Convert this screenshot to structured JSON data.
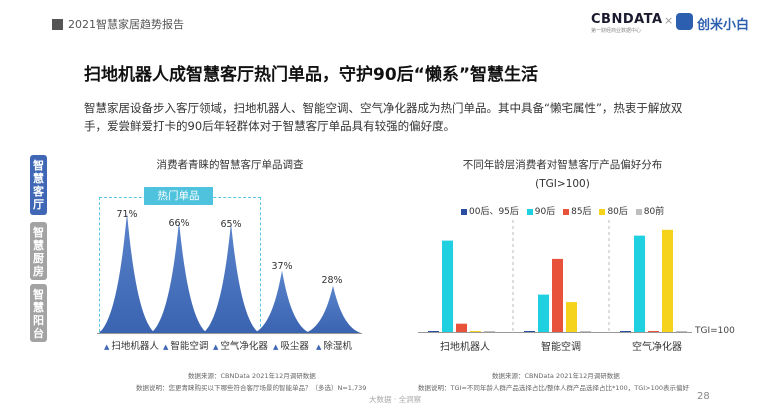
{
  "header": {
    "report_title": "2021智慧家居趋势报告",
    "brand": "CBNDATA",
    "brand_sub": "第一财经商业数据中心",
    "times": "×",
    "partner": "创米小白"
  },
  "main_title": "扫地机器人成智慧客厅热门单品，守护90后“懒系”智慧生活",
  "intro": "智慧家居设备步入客厅领域，扫地机器人、智能空调、空气净化器成为热门单品。其中具备“懒宅属性”，热衷于解放双手，爱尝鲜爱打卡的90后年轻群体对于智慧客厅单品具有较强的偏好度。",
  "side_tabs": [
    "智慧客厅",
    "智慧厨房",
    "智慧阳台"
  ],
  "hot_label": "热门单品",
  "tgi_label": "TGI=100",
  "footer": "大数据 · 全洞察",
  "page_number": "28",
  "colors": {
    "bar_blue": "#3f67b5",
    "cyan": "#1fd0e0",
    "red": "#e8513a",
    "yellow": "#f5d31c",
    "gray": "#bfbfbf",
    "dark_blue": "#2a4fa0"
  },
  "chart_data": [
    {
      "type": "bar",
      "title": "消费者青睐的智慧客厅单品调查",
      "categories": [
        "扫地机器人",
        "智能空调",
        "空气净化器",
        "吸尘器",
        "除湿机"
      ],
      "values": [
        71,
        66,
        65,
        37,
        28
      ],
      "value_labels": [
        "71%",
        "66%",
        "65%",
        "37%",
        "28%"
      ],
      "ylim": [
        0,
        80
      ],
      "highlight": {
        "label": "热门单品",
        "categories": [
          "扫地机器人",
          "智能空调",
          "空气净化器"
        ]
      },
      "source": "数据来源：CBNData 2021年12月调研数据",
      "note": "数据说明：您更青睐购买以下哪些符合客厅场景的智能单品？（多选）N=1,739"
    },
    {
      "type": "bar",
      "title": "不同年龄层消费者对智慧客厅产品偏好分布",
      "subtitle": "(TGI>100)",
      "categories": [
        "扫地机器人",
        "智能空调",
        "空气净化器"
      ],
      "series": [
        {
          "name": "00后、95后",
          "values": [
            0.3,
            0.3,
            0.3
          ]
        },
        {
          "name": "90后",
          "values": [
            110,
            45,
            116
          ]
        },
        {
          "name": "85后",
          "values": [
            10,
            88,
            0.5
          ]
        },
        {
          "name": "80后",
          "values": [
            1,
            36,
            123
          ]
        },
        {
          "name": "80前",
          "values": [
            0.3,
            1,
            0.5
          ]
        }
      ],
      "baseline": "TGI=100",
      "source": "数据来源：CBNData 2021年12月调研数据",
      "note": "数据说明：TGI=不同年龄人群产品选择占比/整体人群产品选择占比*100，TGI>100表示偏好"
    }
  ]
}
